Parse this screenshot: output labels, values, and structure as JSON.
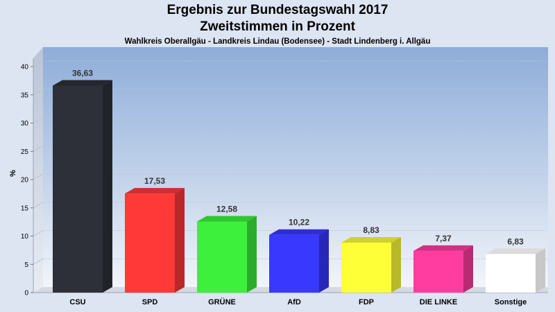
{
  "header": {
    "title_line1": "Ergebnis zur Bundestagswahl 2017",
    "title_line2": "Zweitstimmen in Prozent",
    "subtitle": "Wahlkreis Oberallgäu - Landkreis Lindau (Bodensee) - Stadt Lindenberg i. Allgäu"
  },
  "chart_data": {
    "type": "bar",
    "title": "Ergebnis zur Bundestagswahl 2017 / Zweitstimmen in Prozent",
    "subtitle": "Wahlkreis Oberallgäu - Landkreis Lindau (Bodensee) - Stadt Lindenberg i. Allgäu",
    "xlabel": "",
    "ylabel": "%",
    "ylim": [
      0,
      40
    ],
    "yticks": [
      0,
      5,
      10,
      15,
      20,
      25,
      30,
      35,
      40
    ],
    "grid": true,
    "categories": [
      "CSU",
      "SPD",
      "GRÜNE",
      "AfD",
      "FDP",
      "DIE LINKE",
      "Sonstige"
    ],
    "values": [
      36.63,
      17.53,
      12.58,
      10.22,
      8.83,
      7.37,
      6.83
    ],
    "value_labels": [
      "36,63",
      "17,53",
      "12,58",
      "10,22",
      "8,83",
      "7,37",
      "6,83"
    ],
    "colors": [
      "#2d3038",
      "#ff3838",
      "#3cf03c",
      "#3838ff",
      "#ffff38",
      "#ff3ca0",
      "#ffffff"
    ]
  }
}
